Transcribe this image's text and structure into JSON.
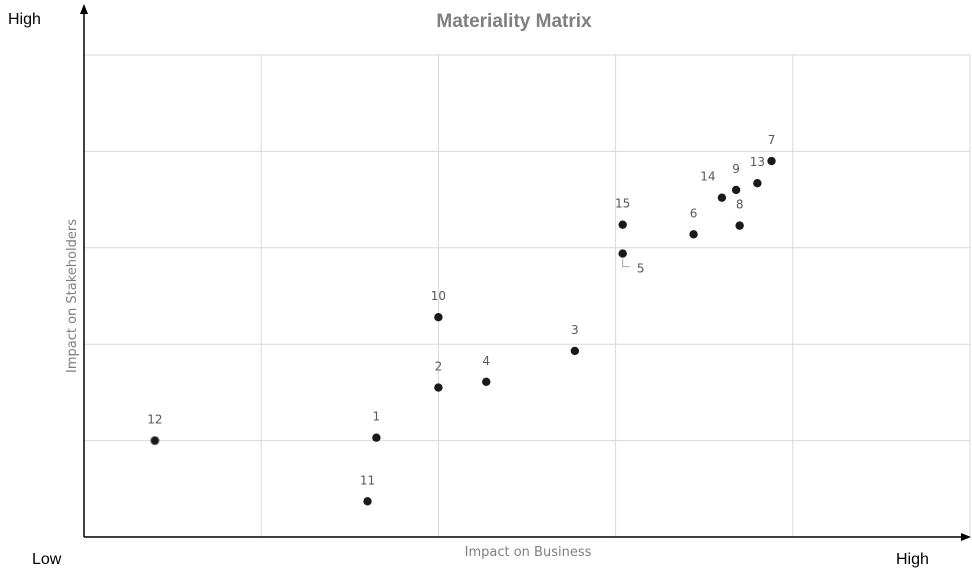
{
  "chart_data": {
    "type": "scatter",
    "title": "Materiality Matrix",
    "xlabel": "Impact on Business",
    "ylabel": "Impact on Stakeholders",
    "x_low_label": "Low",
    "x_high_label": "High",
    "y_high_label": "High",
    "xlim": [
      0,
      5
    ],
    "ylim": [
      0,
      5
    ],
    "grid": true,
    "marker_color": "#1a1a1a",
    "points": [
      {
        "label": "1",
        "x": 1.65,
        "y": 1.03
      },
      {
        "label": "2",
        "x": 2.0,
        "y": 1.55
      },
      {
        "label": "3",
        "x": 2.77,
        "y": 1.93
      },
      {
        "label": "4",
        "x": 2.27,
        "y": 1.61
      },
      {
        "label": "5",
        "x": 3.04,
        "y": 2.94
      },
      {
        "label": "6",
        "x": 3.44,
        "y": 3.14
      },
      {
        "label": "7",
        "x": 3.88,
        "y": 3.9
      },
      {
        "label": "8",
        "x": 3.7,
        "y": 3.23
      },
      {
        "label": "9",
        "x": 3.68,
        "y": 3.6
      },
      {
        "label": "10",
        "x": 2.0,
        "y": 2.28
      },
      {
        "label": "11",
        "x": 1.6,
        "y": 0.37
      },
      {
        "label": "12",
        "x": 0.4,
        "y": 1.0
      },
      {
        "label": "13",
        "x": 3.8,
        "y": 3.67
      },
      {
        "label": "14",
        "x": 3.6,
        "y": 3.52
      },
      {
        "label": "15",
        "x": 3.04,
        "y": 3.24
      }
    ]
  }
}
